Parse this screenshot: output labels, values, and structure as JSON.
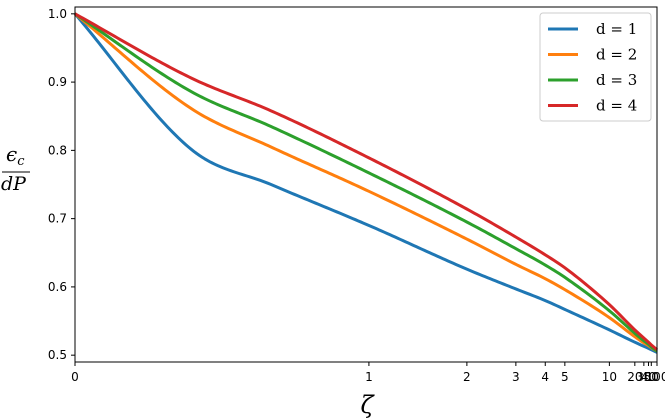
{
  "chart_data": {
    "type": "line",
    "title": "",
    "xlabel": "ζ",
    "ylabel": {
      "numerator": "ϵ",
      "numerator_sub": "c",
      "denominator": "dP"
    },
    "x_scale": "ζ/(1+ζ)",
    "xlim": [
      0,
      100
    ],
    "ylim": [
      0.49,
      1.01
    ],
    "x_ticks": [
      0,
      1,
      2,
      3,
      4,
      5,
      10,
      20,
      30,
      40,
      50,
      100
    ],
    "x_tick_labels": [
      "0",
      "1",
      "2",
      "3",
      "4",
      "5",
      "10",
      "20",
      "30",
      "40",
      "50",
      "100"
    ],
    "y_ticks": [
      0.5,
      0.6,
      0.7,
      0.8,
      0.9,
      1.0
    ],
    "y_tick_labels": [
      "0.5",
      "0.6",
      "0.7",
      "0.8",
      "0.9",
      "1.0"
    ],
    "grid": false,
    "legend_position": "top-right",
    "x": [
      0,
      0.25,
      0.5,
      1,
      2,
      3,
      4,
      5,
      10,
      20,
      30,
      40,
      50,
      100
    ],
    "series": [
      {
        "name": "d = 1",
        "color": "#1f77b4",
        "values": [
          1.0,
          0.8,
          0.75,
          0.69,
          0.626,
          0.597,
          0.58,
          0.567,
          0.537,
          0.519,
          0.513,
          0.51,
          0.508,
          0.504
        ]
      },
      {
        "name": "d = 2",
        "color": "#ff7f0e",
        "values": [
          1.0,
          0.86,
          0.805,
          0.74,
          0.67,
          0.633,
          0.612,
          0.596,
          0.555,
          0.527,
          0.518,
          0.514,
          0.511,
          0.506
        ]
      },
      {
        "name": "d = 3",
        "color": "#2ca02c",
        "values": [
          1.0,
          0.885,
          0.835,
          0.767,
          0.695,
          0.656,
          0.632,
          0.614,
          0.565,
          0.532,
          0.521,
          0.516,
          0.512,
          0.506
        ]
      },
      {
        "name": "d = 4",
        "color": "#d62728",
        "values": [
          1.0,
          0.905,
          0.858,
          0.789,
          0.714,
          0.673,
          0.647,
          0.628,
          0.574,
          0.537,
          0.525,
          0.519,
          0.515,
          0.508
        ]
      }
    ]
  }
}
